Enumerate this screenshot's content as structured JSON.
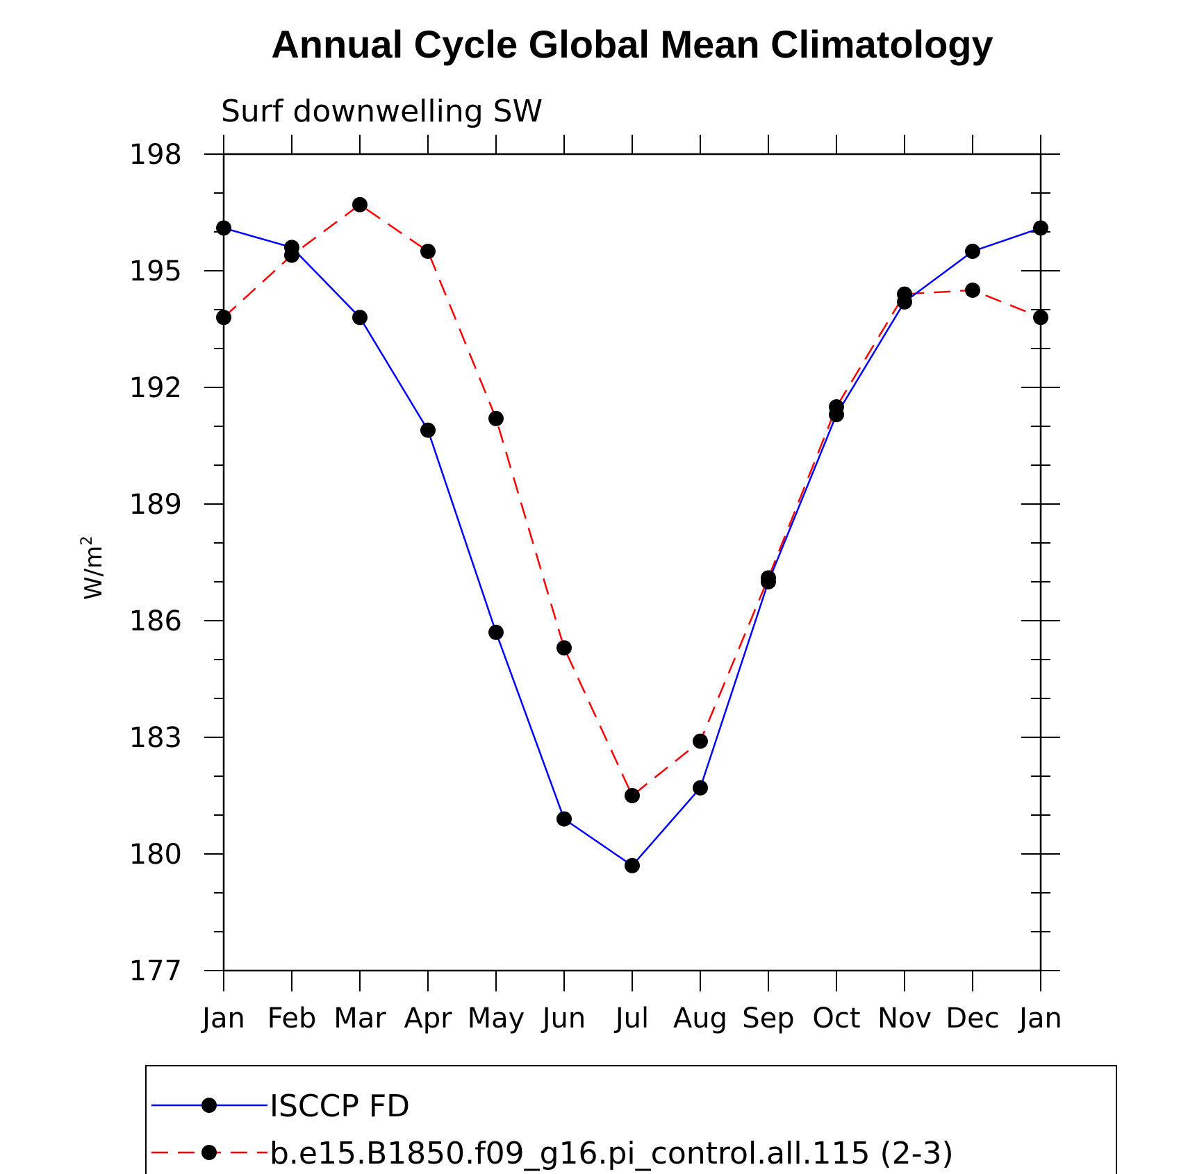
{
  "chart_data": {
    "type": "line",
    "title": "Annual Cycle Global Mean Climatology",
    "subtitle": "Surf downwelling SW",
    "ylabel": "W/m",
    "ylabel_superscript": "2",
    "xlabel": "",
    "categories": [
      "Jan",
      "Feb",
      "Mar",
      "Apr",
      "May",
      "Jun",
      "Jul",
      "Aug",
      "Sep",
      "Oct",
      "Nov",
      "Dec",
      "Jan"
    ],
    "yticks": [
      "177",
      "180",
      "183",
      "186",
      "189",
      "192",
      "195",
      "198"
    ],
    "ylim": [
      177,
      198
    ],
    "grid": false,
    "legend_position": "bottom",
    "series": [
      {
        "name": "ISCCP FD",
        "color": "#0000ff",
        "dash": "solid",
        "marker": "filled-circle",
        "values": [
          196.1,
          195.6,
          193.8,
          190.9,
          185.7,
          180.9,
          179.7,
          181.7,
          187.0,
          191.3,
          194.2,
          195.5,
          196.1
        ]
      },
      {
        "name": "b.e15.B1850.f09_g16.pi_control.all.115 (2-3)",
        "color": "#ff0000",
        "dash": "dashed",
        "marker": "filled-circle",
        "values": [
          193.8,
          195.4,
          196.7,
          195.5,
          191.2,
          185.3,
          181.5,
          182.9,
          187.1,
          191.5,
          194.4,
          194.5,
          193.8
        ]
      }
    ]
  }
}
